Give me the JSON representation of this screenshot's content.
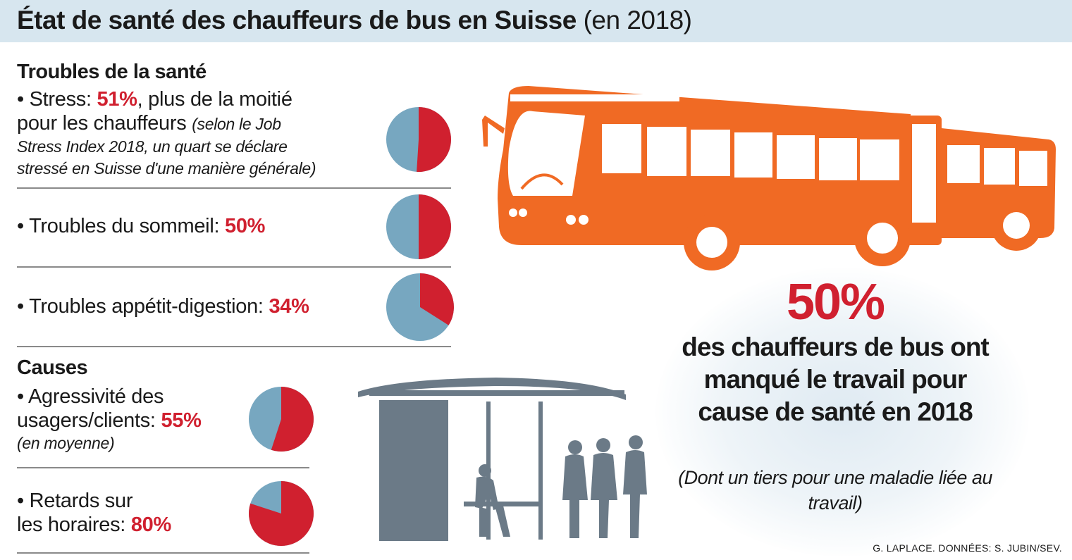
{
  "header": {
    "title_bold": "État de santé des chauffeurs de bus en Suisse",
    "title_rest": "(en 2018)"
  },
  "sections": {
    "troubles": "Troubles de la santé",
    "causes": "Causes"
  },
  "items": {
    "stress": {
      "label": "• Stress: ",
      "pct": "51%",
      "after": ", plus de la moitié",
      "line2": "pour les chauffeurs ",
      "note1": "(selon le Job",
      "note2": "Stress Index 2018, un quart se déclare",
      "note3": "stressé en Suisse d'une manière générale)"
    },
    "sommeil": {
      "label": "• Troubles du sommeil: ",
      "pct": "50%"
    },
    "appetit": {
      "label": "• Troubles appétit-digestion: ",
      "pct": "34%"
    },
    "agressivite": {
      "line1": "• Agressivité des",
      "line2": "usagers/clients: ",
      "pct": "55%",
      "note": "(en moyenne)"
    },
    "retards": {
      "line1": "• Retards sur",
      "line2": "les horaires: ",
      "pct": "80%"
    }
  },
  "stat": {
    "pct": "50%",
    "text": "des chauffeurs de bus ont manqué le travail pour cause de santé en 2018",
    "note": "(Dont un tiers pour une maladie liée au travail)"
  },
  "credit": "G. LAPLACE. DONNÉES: S. JUBIN/SEV.",
  "colors": {
    "red": "#d0202f",
    "blue": "#77a7c0",
    "bus": "#f06a24",
    "shelter": "#6b7a87"
  },
  "chart_data": {
    "type": "pie",
    "series": [
      {
        "name": "Stress",
        "values": [
          51,
          49
        ]
      },
      {
        "name": "Troubles du sommeil",
        "values": [
          50,
          50
        ]
      },
      {
        "name": "Troubles appétit-digestion",
        "values": [
          34,
          66
        ]
      },
      {
        "name": "Agressivité des usagers/clients",
        "values": [
          55,
          45
        ]
      },
      {
        "name": "Retards sur les horaires",
        "values": [
          80,
          20
        ]
      }
    ]
  }
}
